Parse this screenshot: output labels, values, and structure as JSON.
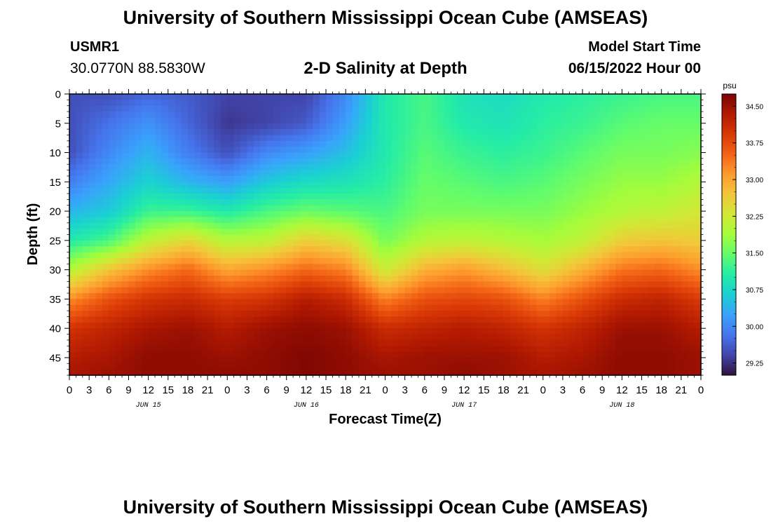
{
  "header": {
    "title": "University of Southern Mississippi Ocean Cube (AMSEAS)",
    "station_id": "USMR1",
    "coordinates": "30.0770N  88.5830W",
    "subtitle": "2-D Salinity at Depth",
    "model_start_label": "Model Start Time",
    "model_start_value": "06/15/2022 Hour 00"
  },
  "footer": {
    "title": "University of Southern Mississippi Ocean Cube (AMSEAS)"
  },
  "chart_data": {
    "type": "heatmap",
    "title": "2-D Salinity at Depth",
    "xlabel": "Forecast Time(Z)",
    "ylabel": "Depth (ft)",
    "x_ticks": [
      "0",
      "3",
      "6",
      "9",
      "12",
      "15",
      "18",
      "21",
      "0",
      "3",
      "6",
      "9",
      "12",
      "15",
      "18",
      "21",
      "0",
      "3",
      "6",
      "9",
      "12",
      "15",
      "18",
      "21",
      "0",
      "3",
      "6",
      "9",
      "12",
      "15",
      "18",
      "21",
      "0"
    ],
    "day_labels": [
      "JUN 15",
      "JUN 16",
      "JUN 17",
      "JUN 18"
    ],
    "xlim": [
      0,
      96
    ],
    "y_ticks": [
      0,
      5,
      10,
      15,
      20,
      25,
      30,
      35,
      40,
      45
    ],
    "ylim": [
      0,
      48
    ],
    "colorbar": {
      "unit": "psu",
      "ticks": [
        34.5,
        33.75,
        33.0,
        32.25,
        31.5,
        30.75,
        30.0,
        29.25
      ],
      "tick_labels": [
        "34.50",
        "33.75",
        "33.00",
        "32.25",
        "31.50",
        "30.75",
        "30.00",
        "29.25"
      ],
      "range": [
        29.0,
        34.75
      ],
      "stops": [
        "#30123b",
        "#4145ab",
        "#4675ed",
        "#39a2fc",
        "#1bcfd4",
        "#24eca6",
        "#61fc6c",
        "#a4fc3b",
        "#d1e834",
        "#f3c63a",
        "#fe9b2d",
        "#f36315",
        "#d93806",
        "#b11901",
        "#7a0403"
      ]
    },
    "time_hours": [
      0,
      6,
      12,
      18,
      24,
      30,
      36,
      42,
      48,
      54,
      60,
      66,
      72,
      78,
      84,
      90,
      96
    ],
    "depths_ft": [
      0,
      5,
      10,
      15,
      20,
      25,
      30,
      35,
      40,
      45,
      48
    ],
    "salinity_psu": [
      [
        29.5,
        29.5,
        29.7,
        29.6,
        29.4,
        29.4,
        29.4,
        30.0,
        31.0,
        31.3,
        30.9,
        30.8,
        31.0,
        31.1,
        31.2,
        31.3,
        31.3
      ],
      [
        29.5,
        29.8,
        30.1,
        29.7,
        29.3,
        29.4,
        29.6,
        30.2,
        31.0,
        31.3,
        31.0,
        30.9,
        31.1,
        31.2,
        31.4,
        31.5,
        31.5
      ],
      [
        29.5,
        30.0,
        30.4,
        29.9,
        29.5,
        30.0,
        30.2,
        30.5,
        31.0,
        31.4,
        31.2,
        31.1,
        31.2,
        31.4,
        31.6,
        31.6,
        31.7
      ],
      [
        29.9,
        30.3,
        30.7,
        30.4,
        30.2,
        30.6,
        30.8,
        30.9,
        31.1,
        31.5,
        31.4,
        31.3,
        31.4,
        31.6,
        31.8,
        31.8,
        32.0
      ],
      [
        30.4,
        30.6,
        31.2,
        31.2,
        31.0,
        31.3,
        31.5,
        31.4,
        31.3,
        31.6,
        31.6,
        31.6,
        31.6,
        31.8,
        32.0,
        32.1,
        32.3
      ],
      [
        31.0,
        31.3,
        32.1,
        32.5,
        32.0,
        32.1,
        32.6,
        32.4,
        31.6,
        32.0,
        32.1,
        32.0,
        31.9,
        32.1,
        32.6,
        32.7,
        32.6
      ],
      [
        32.0,
        32.7,
        33.2,
        33.5,
        33.0,
        33.2,
        33.5,
        33.3,
        32.2,
        32.9,
        33.1,
        32.8,
        32.4,
        32.9,
        33.4,
        33.5,
        33.2
      ],
      [
        33.2,
        33.7,
        34.0,
        34.1,
        33.9,
        34.0,
        34.3,
        34.1,
        33.3,
        33.7,
        33.8,
        33.7,
        33.3,
        33.7,
        34.1,
        34.2,
        33.9
      ],
      [
        34.0,
        34.2,
        34.4,
        34.5,
        34.3,
        34.5,
        34.6,
        34.5,
        34.1,
        34.2,
        34.3,
        34.2,
        34.0,
        34.2,
        34.5,
        34.5,
        34.3
      ],
      [
        34.3,
        34.4,
        34.6,
        34.6,
        34.5,
        34.6,
        34.7,
        34.6,
        34.4,
        34.5,
        34.5,
        34.5,
        34.3,
        34.4,
        34.6,
        34.6,
        34.5
      ],
      [
        34.4,
        34.5,
        34.6,
        34.6,
        34.6,
        34.6,
        34.7,
        34.6,
        34.5,
        34.5,
        34.6,
        34.5,
        34.4,
        34.5,
        34.6,
        34.6,
        34.5
      ]
    ]
  }
}
